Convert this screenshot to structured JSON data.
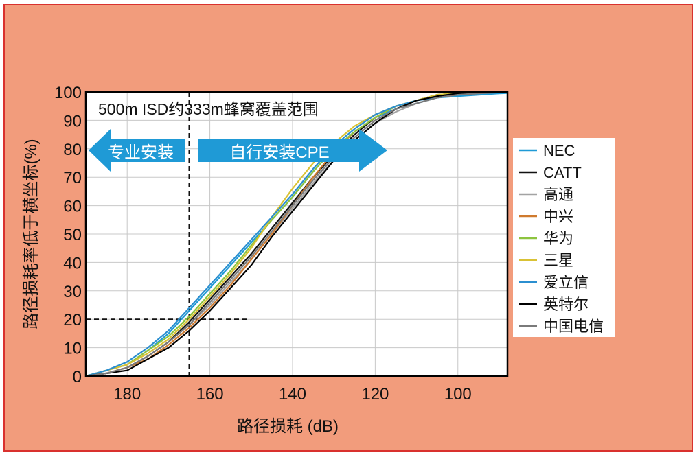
{
  "chart_data": {
    "type": "line",
    "title": "",
    "xlabel": "路径损耗 (dB)",
    "ylabel": "路径损耗率低于横坐标(%)",
    "x_range": [
      190,
      88
    ],
    "x_reversed": true,
    "ylim": [
      0,
      100
    ],
    "xticks": [
      180,
      160,
      140,
      120,
      100
    ],
    "yticks": [
      0,
      10,
      20,
      30,
      40,
      50,
      60,
      70,
      80,
      90,
      100
    ],
    "grid": true,
    "legend_position": "right",
    "annotations": {
      "region_label": "500m ISD约333m蜂窝覆盖范围",
      "left_arrow_label": "专业安装",
      "right_arrow_label": "自行安装CPE",
      "vline_x": 165,
      "hline_y": 20,
      "hline_x_end": 151,
      "arrow_color": "#1f9ad6"
    },
    "series": [
      {
        "name": "NEC",
        "color": "#1f9ad6",
        "x": [
          190,
          185,
          180,
          175,
          170,
          165,
          160,
          155,
          150,
          145,
          140,
          135,
          130,
          125,
          120,
          115,
          110,
          105,
          100,
          95,
          90,
          88
        ],
        "y": [
          0,
          2,
          4,
          9,
          15,
          23,
          31,
          39,
          47,
          55,
          63,
          72,
          80,
          86,
          91,
          94,
          96,
          98,
          98.5,
          99,
          99.5,
          99.6
        ]
      },
      {
        "name": "CATT",
        "color": "#111111",
        "x": [
          190,
          185,
          180,
          175,
          170,
          165,
          160,
          155,
          150,
          145,
          140,
          135,
          130,
          125,
          120,
          115,
          110,
          105,
          100,
          95,
          90,
          88
        ],
        "y": [
          0,
          1,
          3,
          7,
          12,
          19,
          27,
          35,
          43,
          52,
          61,
          70,
          78,
          85,
          91,
          95,
          97,
          99,
          99.5,
          100,
          100,
          100
        ]
      },
      {
        "name": "高通",
        "color": "#a3a3a3",
        "x": [
          190,
          185,
          180,
          175,
          170,
          165,
          160,
          155,
          150,
          145,
          140,
          135,
          130,
          125,
          120,
          115,
          110,
          105,
          100,
          95,
          90,
          88
        ],
        "y": [
          0,
          1,
          3,
          7,
          12,
          18,
          25,
          33,
          41,
          50,
          59,
          68,
          76,
          83,
          89,
          93,
          96,
          98,
          99,
          99.5,
          100,
          100
        ]
      },
      {
        "name": "中兴",
        "color": "#cf7a2e",
        "x": [
          190,
          185,
          180,
          175,
          170,
          165,
          160,
          155,
          150,
          145,
          140,
          135,
          130,
          125,
          120,
          115,
          110,
          105,
          100,
          95,
          90,
          88
        ],
        "y": [
          0,
          1,
          3,
          6,
          11,
          17,
          24,
          32,
          41,
          50,
          60,
          70,
          79,
          86,
          91,
          95,
          97,
          99,
          99.5,
          100,
          100,
          100
        ]
      },
      {
        "name": "华为",
        "color": "#8dc43f",
        "x": [
          190,
          185,
          180,
          175,
          170,
          165,
          160,
          155,
          150,
          145,
          140,
          135,
          130,
          125,
          120,
          115,
          110,
          105,
          100,
          95,
          90,
          88
        ],
        "y": [
          0,
          2,
          4,
          9,
          14,
          21,
          29,
          37,
          46,
          55,
          63,
          72,
          80,
          86,
          91,
          95,
          97,
          99,
          99.5,
          100,
          100,
          100
        ]
      },
      {
        "name": "三星",
        "color": "#d9c235",
        "x": [
          190,
          185,
          180,
          175,
          170,
          165,
          160,
          155,
          150,
          145,
          140,
          135,
          130,
          125,
          120,
          115,
          110,
          105,
          100,
          95,
          90,
          88
        ],
        "y": [
          0,
          2,
          4,
          8,
          13,
          20,
          28,
          36,
          45,
          56,
          66,
          75,
          82,
          88,
          92,
          95,
          97,
          99,
          99.5,
          100,
          100,
          100
        ]
      },
      {
        "name": "爱立信",
        "color": "#2b8fd0",
        "x": [
          190,
          185,
          180,
          175,
          170,
          165,
          160,
          155,
          150,
          145,
          140,
          135,
          130,
          125,
          120,
          115,
          110,
          105,
          100,
          95,
          90,
          88
        ],
        "y": [
          0,
          2,
          5,
          10,
          16,
          24,
          32,
          40,
          48,
          56,
          64,
          73,
          81,
          87,
          92,
          95,
          97,
          98,
          99,
          99.5,
          99.8,
          100
        ]
      },
      {
        "name": "英特尔",
        "color": "#000000",
        "x": [
          190,
          185,
          180,
          175,
          170,
          165,
          160,
          155,
          150,
          145,
          140,
          135,
          130,
          125,
          120,
          115,
          110,
          105,
          100,
          95,
          90,
          88
        ],
        "y": [
          0,
          1,
          2,
          6,
          10,
          16,
          23,
          31,
          39,
          49,
          58,
          67,
          76,
          83,
          89,
          94,
          97,
          98.5,
          99.5,
          100,
          100,
          100
        ]
      },
      {
        "name": "中国电信",
        "color": "#7a7a7a",
        "x": [
          190,
          185,
          180,
          175,
          170,
          165,
          160,
          155,
          150,
          145,
          140,
          135,
          130,
          125,
          120,
          115,
          110,
          105,
          100,
          95,
          90,
          88
        ],
        "y": [
          0,
          1,
          3,
          7,
          12,
          18,
          26,
          34,
          42,
          51,
          60,
          69,
          77,
          84,
          90,
          94,
          96,
          98,
          99,
          99.5,
          99.8,
          100
        ]
      }
    ]
  }
}
